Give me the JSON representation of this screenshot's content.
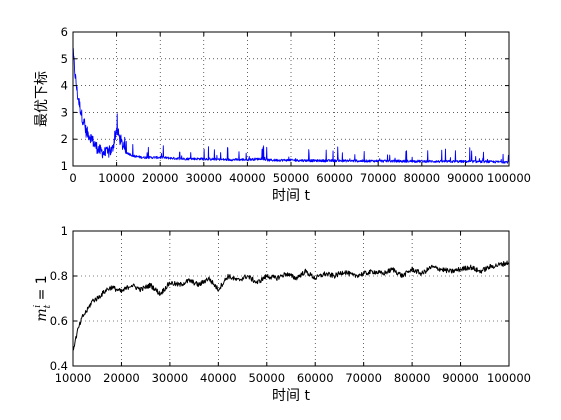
{
  "chart_data": [
    {
      "type": "line",
      "title": "",
      "xlabel": "时间 t",
      "ylabel": "最优下标",
      "xlim": [
        0,
        100000
      ],
      "ylim": [
        1,
        6
      ],
      "x_ticks": [
        "0",
        "10000",
        "20000",
        "30000",
        "40000",
        "50000",
        "60000",
        "70000",
        "80000",
        "90000",
        "100000"
      ],
      "y_ticks": [
        "1",
        "2",
        "3",
        "4",
        "5",
        "6"
      ],
      "grid": true,
      "series": [
        {
          "color": "#0000ff",
          "x": [
            0,
            500,
            1000,
            2000,
            3000,
            4000,
            5000,
            6000,
            7000,
            8000,
            9000,
            10000,
            11000,
            12000,
            14000,
            16000,
            18000,
            20000,
            25000,
            30000,
            35000,
            40000,
            43000,
            45000,
            50000,
            55000,
            60000,
            65000,
            70000,
            75000,
            80000,
            85000,
            90000,
            95000,
            100000
          ],
          "values": [
            5.2,
            4.3,
            3.6,
            2.8,
            2.2,
            2.0,
            1.7,
            1.5,
            1.4,
            1.4,
            1.5,
            2.3,
            1.8,
            1.5,
            1.35,
            1.3,
            1.3,
            1.3,
            1.25,
            1.25,
            1.22,
            1.22,
            1.25,
            1.2,
            1.2,
            1.18,
            1.18,
            1.17,
            1.17,
            1.16,
            1.16,
            1.15,
            1.15,
            1.14,
            1.13
          ]
        }
      ]
    },
    {
      "type": "line",
      "title": "",
      "xlabel": "时间 t",
      "ylabel": "m_t^i = 1",
      "ylabel_main": "m",
      "ylabel_sub": "t",
      "ylabel_sup": "i",
      "ylabel_rest": " = 1",
      "xlim": [
        10000,
        100000
      ],
      "ylim": [
        0.4,
        1
      ],
      "x_ticks": [
        "10000",
        "20000",
        "30000",
        "40000",
        "50000",
        "60000",
        "70000",
        "80000",
        "90000",
        "100000"
      ],
      "y_ticks": [
        "0.4",
        "0.6",
        "0.8",
        "1"
      ],
      "grid": true,
      "series": [
        {
          "color": "#000000",
          "x": [
            10000,
            11000,
            12000,
            13000,
            14000,
            15000,
            16000,
            17000,
            18000,
            20000,
            22000,
            24000,
            26000,
            28000,
            30000,
            32000,
            34000,
            36000,
            38000,
            40000,
            42000,
            44000,
            46000,
            48000,
            50000,
            52000,
            54000,
            56000,
            58000,
            60000,
            62000,
            64000,
            66000,
            68000,
            70000,
            72000,
            74000,
            76000,
            78000,
            80000,
            82000,
            84000,
            86000,
            88000,
            90000,
            92000,
            94000,
            96000,
            98000,
            100000
          ],
          "values": [
            0.47,
            0.56,
            0.62,
            0.65,
            0.69,
            0.7,
            0.72,
            0.74,
            0.75,
            0.73,
            0.76,
            0.74,
            0.76,
            0.72,
            0.77,
            0.76,
            0.78,
            0.76,
            0.79,
            0.74,
            0.8,
            0.78,
            0.8,
            0.77,
            0.8,
            0.79,
            0.81,
            0.79,
            0.82,
            0.79,
            0.81,
            0.8,
            0.82,
            0.8,
            0.81,
            0.82,
            0.81,
            0.83,
            0.8,
            0.83,
            0.81,
            0.84,
            0.83,
            0.82,
            0.83,
            0.84,
            0.82,
            0.84,
            0.85,
            0.86
          ]
        }
      ]
    }
  ]
}
